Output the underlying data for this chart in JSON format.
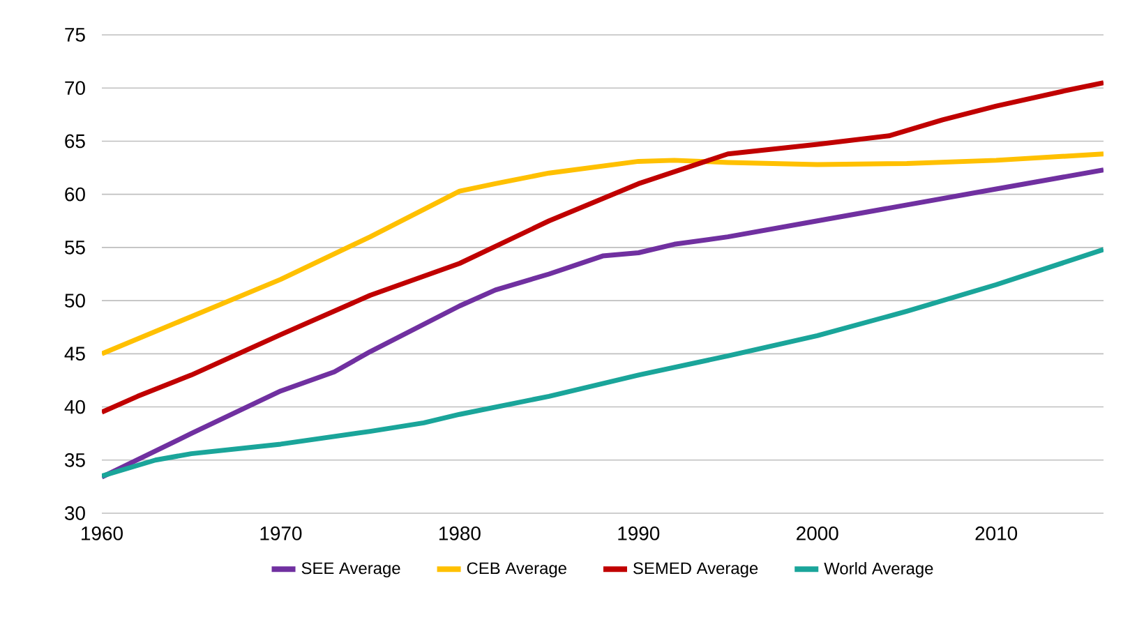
{
  "chart_data": {
    "type": "line",
    "xlim": [
      1960,
      2016
    ],
    "ylim": [
      30,
      75
    ],
    "xticks": [
      1960,
      1970,
      1980,
      1990,
      2000,
      2010
    ],
    "yticks": [
      30,
      35,
      40,
      45,
      50,
      55,
      60,
      65,
      70,
      75
    ],
    "grid": "y",
    "legend": "bottom",
    "line_style": "solid",
    "marker": "none",
    "series": [
      {
        "name": "SEE Average",
        "color": "#7030a0",
        "x": [
          1960,
          1965,
          1970,
          1973,
          1975,
          1980,
          1982,
          1985,
          1988,
          1990,
          1992,
          1995,
          2000,
          2005,
          2010,
          2016
        ],
        "values": [
          33.4,
          37.5,
          41.5,
          43.3,
          45.2,
          49.5,
          51,
          52.5,
          54.2,
          54.5,
          55.3,
          56,
          57.5,
          59,
          60.5,
          62.3
        ]
      },
      {
        "name": "CEB Average",
        "color": "#ffc000",
        "x": [
          1960,
          1965,
          1970,
          1975,
          1980,
          1982,
          1985,
          1990,
          1992,
          1995,
          2000,
          2005,
          2010,
          2016
        ],
        "values": [
          45,
          48.5,
          52,
          56,
          60.3,
          61,
          62,
          63.1,
          63.2,
          63,
          62.8,
          62.9,
          63.2,
          63.8
        ]
      },
      {
        "name": "SEMED Average",
        "color": "#c00000",
        "x": [
          1960,
          1962,
          1965,
          1970,
          1975,
          1980,
          1985,
          1990,
          1995,
          2000,
          2004,
          2007,
          2010,
          2014,
          2016
        ],
        "values": [
          39.5,
          41,
          43,
          46.8,
          50.5,
          53.5,
          57.5,
          61,
          63.8,
          64.7,
          65.5,
          67,
          68.3,
          69.8,
          70.5
        ]
      },
      {
        "name": "World Average",
        "color": "#1aa59a",
        "x": [
          1960,
          1963,
          1965,
          1970,
          1975,
          1978,
          1980,
          1985,
          1990,
          1995,
          2000,
          2005,
          2010,
          2016
        ],
        "values": [
          33.5,
          35,
          35.6,
          36.5,
          37.7,
          38.5,
          39.3,
          41,
          43,
          44.8,
          46.7,
          49,
          51.5,
          54.8
        ]
      }
    ]
  }
}
